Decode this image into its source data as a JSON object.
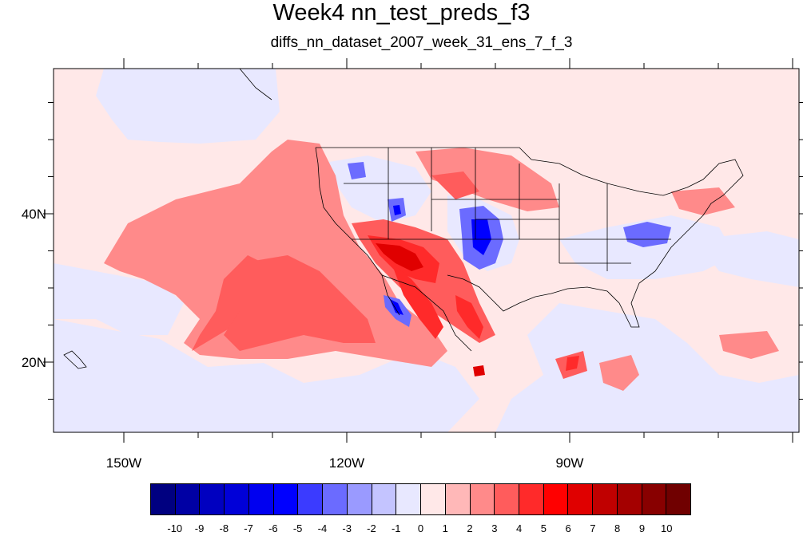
{
  "title": "Week4 nn_test_preds_f3",
  "subtitle": "diffs_nn_dataset_2007_week_31_ens_7_f_3",
  "map": {
    "lon_labels": [
      "150W",
      "120W",
      "90W"
    ],
    "lat_labels": [
      "40N",
      "20N"
    ],
    "lon_range": [
      -160,
      -60
    ],
    "lat_range": [
      10,
      59
    ],
    "background_level": "0 to 1"
  },
  "colorbar": {
    "labels": [
      "-10",
      "-9",
      "-8",
      "-7",
      "-6",
      "-5",
      "-4",
      "-3",
      "-2",
      "-1",
      "0",
      "1",
      "2",
      "3",
      "4",
      "5",
      "6",
      "7",
      "8",
      "9",
      "10"
    ],
    "colors": [
      "#000080",
      "#0000a4",
      "#0000c0",
      "#0000d8",
      "#0000f0",
      "#0000ff",
      "#3b3bff",
      "#6b6bff",
      "#9a9aff",
      "#c4c4ff",
      "#e8e8ff",
      "#ffe8e8",
      "#ffb8b8",
      "#ff8a8a",
      "#ff5c5c",
      "#ff2a2a",
      "#ff0000",
      "#e00000",
      "#c00000",
      "#a40000",
      "#880000",
      "#700000"
    ]
  }
}
